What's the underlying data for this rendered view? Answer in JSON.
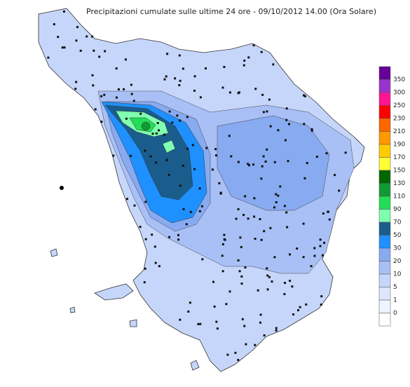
{
  "title": "Precipitazioni cumulate sulle ultime 24 ore - 09/10/2012 14.00 (Ora Solare)",
  "legend": {
    "top_color": "#660099",
    "items": [
      {
        "label": "350",
        "color": "#9933cc"
      },
      {
        "label": "300",
        "color": "#ff1493"
      },
      {
        "label": "250",
        "color": "#ff0000"
      },
      {
        "label": "230",
        "color": "#ff6600"
      },
      {
        "label": "210",
        "color": "#ff9900"
      },
      {
        "label": "190",
        "color": "#ffcc00"
      },
      {
        "label": "170",
        "color": "#ffff33"
      },
      {
        "label": "150",
        "color": "#006600"
      },
      {
        "label": "130",
        "color": "#119933"
      },
      {
        "label": "110",
        "color": "#22dd55"
      },
      {
        "label": "90",
        "color": "#80ffb0"
      },
      {
        "label": "70",
        "color": "#1a5d8c"
      },
      {
        "label": "50",
        "color": "#1e90ff"
      },
      {
        "label": "30",
        "color": "#88aaf0"
      },
      {
        "label": "20",
        "color": "#a8c0f6"
      },
      {
        "label": "10",
        "color": "#c6d6fb"
      },
      {
        "label": "5",
        "color": "#dde6fd"
      },
      {
        "label": "1",
        "color": "#eef3ff"
      },
      {
        "label": "0",
        "color": "#ffffff"
      }
    ]
  }
}
